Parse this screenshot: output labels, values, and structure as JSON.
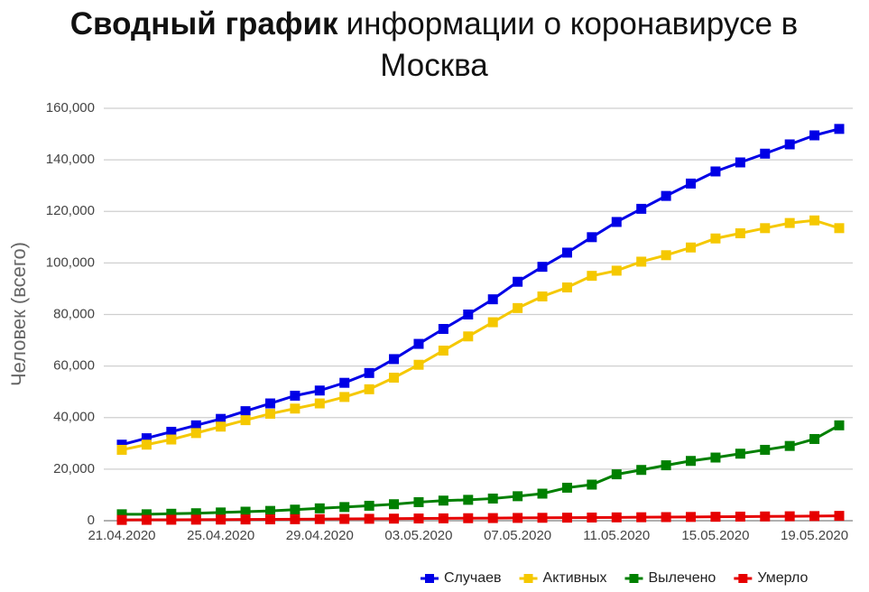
{
  "chart_data": {
    "type": "line",
    "title": {
      "bold": "Сводный график",
      "text": "информации о коронавирусе в Москва"
    },
    "y_label": "Человек (всего)",
    "categories": [
      "21.04.2020",
      null,
      null,
      null,
      "25.04.2020",
      null,
      null,
      null,
      "29.04.2020",
      null,
      null,
      null,
      "03.05.2020",
      null,
      null,
      null,
      "07.05.2020",
      null,
      null,
      null,
      "11.05.2020",
      null,
      null,
      null,
      "15.05.2020",
      null,
      null,
      null,
      "19.05.2020",
      null
    ],
    "ylim": [
      0,
      160000
    ],
    "yticks": [
      0,
      {
        "value": 20000,
        "label": "20,000"
      },
      {
        "value": 40000,
        "label": "40,000"
      },
      {
        "value": 60000,
        "label": "60,000"
      },
      {
        "value": 80000,
        "label": "80,000"
      },
      {
        "value": 100000,
        "label": "100,000"
      },
      {
        "value": 120000,
        "label": "120,000"
      },
      {
        "value": 140000,
        "label": "140,000"
      },
      {
        "value": 160000,
        "label": "160,000"
      }
    ],
    "grid": true,
    "legend": "bottom-right",
    "series": [
      {
        "name": "Случаев",
        "color": "#0000e6",
        "values": [
          29500,
          32000,
          34500,
          37000,
          39500,
          42500,
          45500,
          48500,
          50500,
          53500,
          57300,
          62700,
          68600,
          74400,
          80000,
          85900,
          92700,
          98500,
          104000,
          110000,
          115900,
          121000,
          126000,
          130800,
          135500,
          139000,
          142400,
          146000,
          149500,
          152000
        ]
      },
      {
        "name": "Активных",
        "color": "#f5c800",
        "values": [
          27500,
          29500,
          31500,
          34000,
          36500,
          39000,
          41500,
          43500,
          45500,
          48000,
          51000,
          55500,
          60500,
          66000,
          71500,
          77000,
          82500,
          87000,
          90500,
          95000,
          97000,
          100500,
          103000,
          106000,
          109500,
          111500,
          113500,
          115500,
          116500,
          113500
        ]
      },
      {
        "name": "Вылечено",
        "color": "#008000",
        "values": [
          2500,
          2500,
          2700,
          2900,
          3200,
          3500,
          3800,
          4300,
          4800,
          5300,
          5800,
          6400,
          7200,
          7800,
          8100,
          8600,
          9500,
          10500,
          12800,
          14000,
          18000,
          19700,
          21500,
          23200,
          24500,
          26000,
          27500,
          29000,
          31700,
          37000
        ]
      },
      {
        "name": "Умерло",
        "color": "#e60000",
        "values": [
          300,
          330,
          370,
          400,
          440,
          480,
          520,
          580,
          620,
          680,
          740,
          800,
          860,
          910,
          970,
          1020,
          1080,
          1130,
          1180,
          1230,
          1290,
          1340,
          1400,
          1460,
          1520,
          1590,
          1650,
          1720,
          1800,
          1880
        ]
      }
    ]
  }
}
